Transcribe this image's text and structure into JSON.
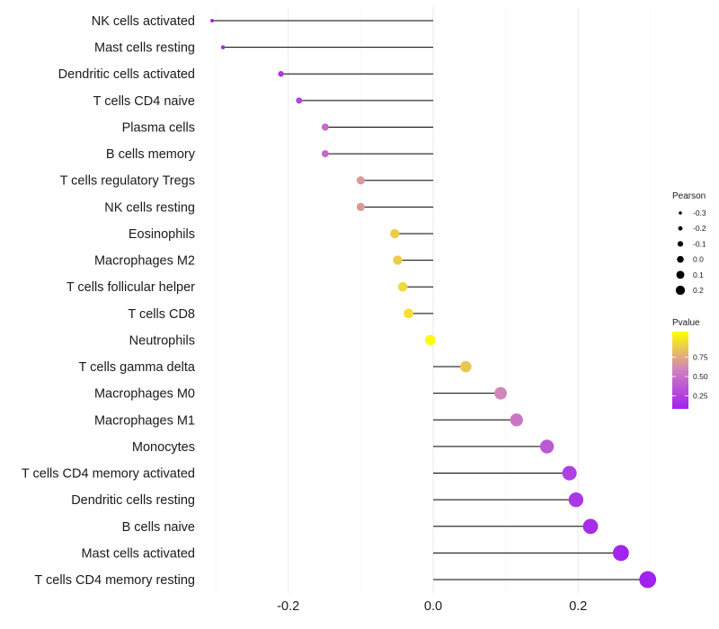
{
  "chart_data": {
    "type": "lollipop",
    "title": "",
    "xlabel": "",
    "ylabel": "",
    "xlim": [
      -0.31,
      0.31
    ],
    "xticks": [
      -0.2,
      0.0,
      0.2
    ],
    "xtick_labels": [
      "-0.2",
      "0.0",
      "0.2"
    ],
    "grid": true,
    "categories": [
      "NK cells activated",
      "Mast cells resting",
      "Dendritic cells activated",
      "T cells CD4 naive",
      "Plasma cells",
      "B cells memory",
      "T cells regulatory  Tregs ",
      "NK cells resting",
      "Eosinophils",
      "Macrophages M2",
      "T cells follicular helper",
      "T cells CD8",
      "Neutrophils",
      "T cells gamma delta",
      "Macrophages M0",
      "Macrophages M1",
      "Monocytes",
      "T cells CD4 memory activated",
      "Dendritic cells resting",
      "B cells naive",
      "Mast cells activated",
      "T cells CD4 memory resting"
    ],
    "pearson": [
      -0.305,
      -0.29,
      -0.21,
      -0.185,
      -0.149,
      -0.149,
      -0.1,
      -0.1,
      -0.053,
      -0.049,
      -0.042,
      -0.034,
      -0.004,
      0.045,
      0.093,
      0.115,
      0.157,
      0.188,
      0.197,
      0.217,
      0.259,
      0.296
    ],
    "pvalue": [
      0.02,
      0.03,
      0.12,
      0.2,
      0.38,
      0.38,
      0.6,
      0.6,
      0.8,
      0.8,
      0.85,
      0.88,
      0.99,
      0.78,
      0.52,
      0.45,
      0.3,
      0.16,
      0.12,
      0.07,
      0.02,
      0.01
    ],
    "legend_pearson": {
      "title": "Pearson",
      "values": [
        -0.3,
        -0.2,
        -0.1,
        0.0,
        0.1,
        0.2
      ],
      "labels": [
        "-0.3",
        "-0.2",
        "-0.1",
        "0.0",
        "0.1",
        "0.2"
      ]
    },
    "legend_pvalue": {
      "title": "Pvalue",
      "labels": [
        "0.75",
        "0.50",
        "0.25"
      ],
      "values": [
        0.75,
        0.5,
        0.25
      ],
      "range": [
        0.0,
        1.0
      ],
      "colors": {
        "low": "#a020f0",
        "mid": "#d080c0",
        "high": "#ffff00"
      }
    }
  }
}
